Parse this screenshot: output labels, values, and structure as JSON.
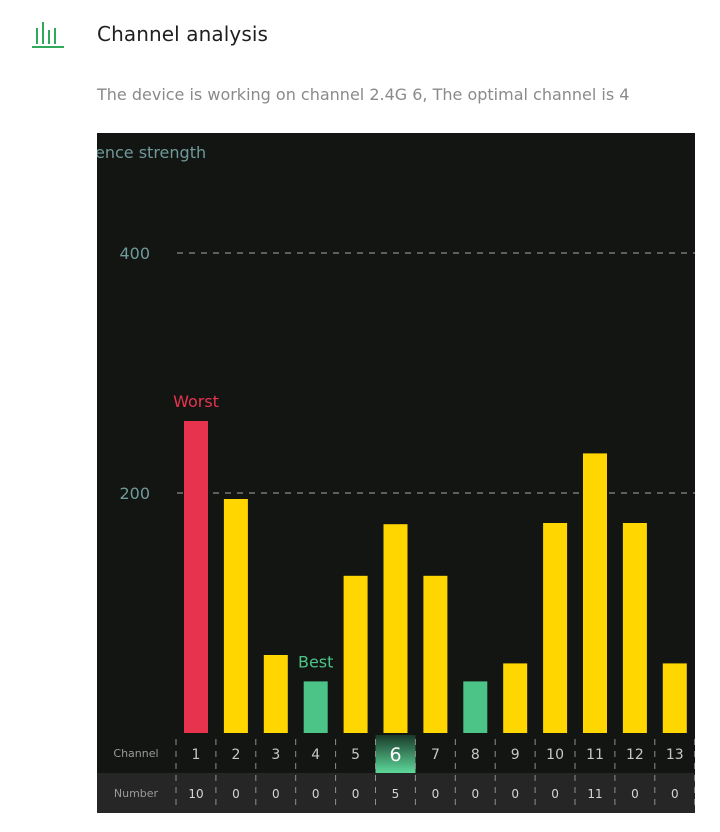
{
  "header": {
    "icon": "bar-chart-icon",
    "title": "Channel analysis",
    "subtitle": "The device is working on channel 2.4G 6, The optimal channel is 4"
  },
  "colors": {
    "accent": "#2eaa5a",
    "worst": "#e8334f",
    "best": "#4dc487",
    "normal": "#ffd600",
    "axis_text": "#6f9a9a",
    "background": "#121512",
    "number_row": "#262626"
  },
  "chart_data": {
    "type": "bar",
    "ylabel": "ence strength",
    "yticks": [
      200,
      400
    ],
    "ylim": [
      0,
      420
    ],
    "grid": true,
    "categories": [
      "1",
      "2",
      "3",
      "4",
      "5",
      "6",
      "7",
      "8",
      "9",
      "10",
      "11",
      "12",
      "13"
    ],
    "values": [
      260,
      195,
      65,
      43,
      131,
      174,
      131,
      43,
      58,
      175,
      233,
      175,
      58
    ],
    "bar_status": [
      "worst",
      "normal",
      "normal",
      "best",
      "normal",
      "normal",
      "normal",
      "best",
      "normal",
      "normal",
      "normal",
      "normal",
      "normal"
    ],
    "worst_label": "Worst",
    "best_label": "Best",
    "worst_channel": "1",
    "best_channel": "4",
    "current_channel": "6",
    "channel_row_label": "Channel",
    "number_row_label": "Number",
    "numbers": [
      "10",
      "0",
      "0",
      "0",
      "0",
      "5",
      "0",
      "0",
      "0",
      "0",
      "11",
      "0",
      "0"
    ]
  }
}
